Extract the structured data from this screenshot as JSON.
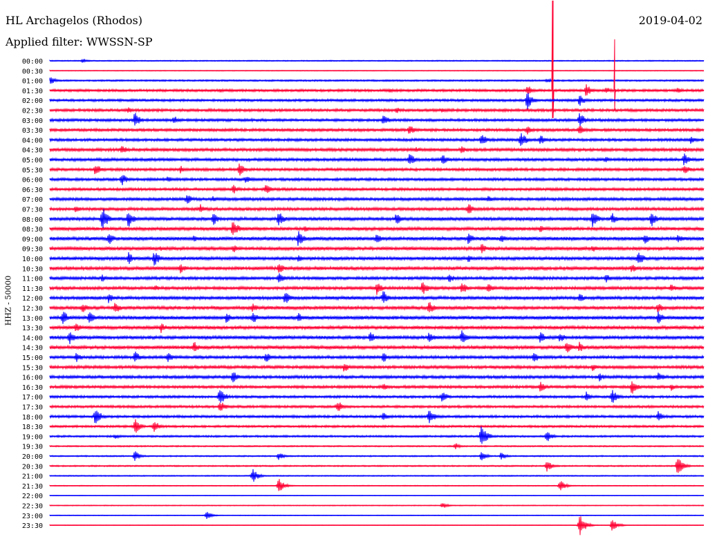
{
  "header": {
    "station": "HL Archagelos (Rhodos)",
    "filter": "Applied filter: WWSSN-SP",
    "date": "2019-04-02"
  },
  "chart_data": {
    "type": "line",
    "title": "HL Archagelos (Rhodos)",
    "subtitle": "Applied filter: WWSSN-SP",
    "ylabel": "HHZ - 50000",
    "xlabel": "",
    "trace_colors": [
      "#0000ff",
      "#ff0033"
    ],
    "categories": [
      "00:00",
      "00:30",
      "01:00",
      "01:30",
      "02:00",
      "02:30",
      "03:00",
      "03:30",
      "04:00",
      "04:30",
      "05:00",
      "05:30",
      "06:00",
      "06:30",
      "07:00",
      "07:30",
      "08:00",
      "08:30",
      "09:00",
      "09:30",
      "10:00",
      "10:30",
      "11:00",
      "11:30",
      "12:00",
      "12:30",
      "13:00",
      "13:30",
      "14:00",
      "14:30",
      "15:00",
      "15:30",
      "16:00",
      "16:30",
      "17:00",
      "17:30",
      "18:00",
      "18:30",
      "19:00",
      "19:30",
      "20:00",
      "20:30",
      "21:00",
      "21:30",
      "22:00",
      "22:30",
      "23:00",
      "23:30"
    ],
    "noise": [
      0.8,
      0.5,
      1.2,
      1.8,
      1.8,
      2.0,
      2.0,
      2.0,
      2.0,
      2.2,
      2.2,
      2.0,
      2.0,
      2.0,
      2.2,
      2.2,
      2.4,
      2.4,
      2.6,
      2.4,
      2.4,
      2.4,
      2.2,
      2.2,
      2.4,
      2.4,
      2.6,
      2.4,
      2.4,
      2.4,
      2.2,
      2.2,
      2.2,
      2.0,
      1.8,
      1.8,
      1.8,
      1.6,
      1.4,
      1.0,
      1.0,
      1.0,
      0.8,
      0.6,
      0.4,
      0.6,
      0.5,
      0.4
    ],
    "events": [
      {
        "row": 0,
        "t": 0.05,
        "a": 4
      },
      {
        "row": 2,
        "t": 0.0,
        "a": 7
      },
      {
        "row": 2,
        "t": 0.76,
        "a": 4
      },
      {
        "row": 3,
        "t": 0.26,
        "a": 4
      },
      {
        "row": 3,
        "t": 0.52,
        "a": 4
      },
      {
        "row": 3,
        "t": 0.73,
        "a": 9
      },
      {
        "row": 3,
        "t": 0.82,
        "a": 10
      },
      {
        "row": 3,
        "t": 0.85,
        "a": 6
      },
      {
        "row": 3,
        "t": 0.96,
        "a": 5
      },
      {
        "row": 4,
        "t": 0.73,
        "a": 14
      },
      {
        "row": 4,
        "t": 0.81,
        "a": 9
      },
      {
        "row": 5,
        "t": 0.12,
        "a": 5
      },
      {
        "row": 5,
        "t": 0.53,
        "a": 5
      },
      {
        "row": 5,
        "t": 0.6,
        "a": 4
      },
      {
        "row": 6,
        "t": 0.13,
        "a": 12
      },
      {
        "row": 6,
        "t": 0.19,
        "a": 7
      },
      {
        "row": 6,
        "t": 0.51,
        "a": 9
      },
      {
        "row": 6,
        "t": 0.81,
        "a": 12
      },
      {
        "row": 7,
        "t": 0.55,
        "a": 8
      },
      {
        "row": 7,
        "t": 0.73,
        "a": 8
      },
      {
        "row": 7,
        "t": 0.81,
        "a": 8
      },
      {
        "row": 8,
        "t": 0.66,
        "a": 10
      },
      {
        "row": 8,
        "t": 0.72,
        "a": 13
      },
      {
        "row": 8,
        "t": 0.75,
        "a": 8
      },
      {
        "row": 8,
        "t": 0.98,
        "a": 6
      },
      {
        "row": 9,
        "t": 0.11,
        "a": 8
      },
      {
        "row": 9,
        "t": 0.56,
        "a": 5
      },
      {
        "row": 9,
        "t": 0.63,
        "a": 7
      },
      {
        "row": 9,
        "t": 0.97,
        "a": 4
      },
      {
        "row": 10,
        "t": 0.55,
        "a": 10
      },
      {
        "row": 10,
        "t": 0.6,
        "a": 9
      },
      {
        "row": 10,
        "t": 0.85,
        "a": 5
      },
      {
        "row": 10,
        "t": 0.97,
        "a": 10
      },
      {
        "row": 11,
        "t": 0.07,
        "a": 10
      },
      {
        "row": 11,
        "t": 0.2,
        "a": 6
      },
      {
        "row": 11,
        "t": 0.29,
        "a": 10
      },
      {
        "row": 11,
        "t": 0.97,
        "a": 8
      },
      {
        "row": 12,
        "t": 0.11,
        "a": 10
      },
      {
        "row": 12,
        "t": 0.18,
        "a": 5
      },
      {
        "row": 12,
        "t": 0.3,
        "a": 6
      },
      {
        "row": 13,
        "t": 0.28,
        "a": 8
      },
      {
        "row": 13,
        "t": 0.33,
        "a": 8
      },
      {
        "row": 14,
        "t": 0.21,
        "a": 8
      },
      {
        "row": 14,
        "t": 0.25,
        "a": 5
      },
      {
        "row": 14,
        "t": 0.67,
        "a": 6
      },
      {
        "row": 15,
        "t": 0.04,
        "a": 6
      },
      {
        "row": 15,
        "t": 0.23,
        "a": 8
      },
      {
        "row": 15,
        "t": 0.64,
        "a": 9
      },
      {
        "row": 16,
        "t": 0.08,
        "a": 20
      },
      {
        "row": 16,
        "t": 0.12,
        "a": 14
      },
      {
        "row": 16,
        "t": 0.25,
        "a": 10
      },
      {
        "row": 16,
        "t": 0.35,
        "a": 12
      },
      {
        "row": 16,
        "t": 0.53,
        "a": 10
      },
      {
        "row": 16,
        "t": 0.83,
        "a": 14
      },
      {
        "row": 16,
        "t": 0.86,
        "a": 9
      },
      {
        "row": 16,
        "t": 0.92,
        "a": 12
      },
      {
        "row": 17,
        "t": 0.28,
        "a": 14
      },
      {
        "row": 17,
        "t": 0.39,
        "a": 6
      },
      {
        "row": 17,
        "t": 0.75,
        "a": 6
      },
      {
        "row": 18,
        "t": 0.09,
        "a": 10
      },
      {
        "row": 18,
        "t": 0.22,
        "a": 6
      },
      {
        "row": 18,
        "t": 0.38,
        "a": 12
      },
      {
        "row": 18,
        "t": 0.5,
        "a": 8
      },
      {
        "row": 18,
        "t": 0.64,
        "a": 10
      },
      {
        "row": 18,
        "t": 0.69,
        "a": 7
      },
      {
        "row": 18,
        "t": 0.91,
        "a": 9
      },
      {
        "row": 18,
        "t": 0.96,
        "a": 8
      },
      {
        "row": 19,
        "t": 0.17,
        "a": 4
      },
      {
        "row": 19,
        "t": 0.28,
        "a": 7
      },
      {
        "row": 19,
        "t": 0.66,
        "a": 8
      },
      {
        "row": 19,
        "t": 0.83,
        "a": 6
      },
      {
        "row": 20,
        "t": 0.12,
        "a": 10
      },
      {
        "row": 20,
        "t": 0.16,
        "a": 12
      },
      {
        "row": 20,
        "t": 0.38,
        "a": 6
      },
      {
        "row": 20,
        "t": 0.64,
        "a": 7
      },
      {
        "row": 20,
        "t": 0.9,
        "a": 12
      },
      {
        "row": 21,
        "t": 0.2,
        "a": 8
      },
      {
        "row": 21,
        "t": 0.35,
        "a": 9
      },
      {
        "row": 21,
        "t": 0.89,
        "a": 7
      },
      {
        "row": 22,
        "t": 0.08,
        "a": 6
      },
      {
        "row": 22,
        "t": 0.35,
        "a": 10
      },
      {
        "row": 22,
        "t": 0.61,
        "a": 8
      },
      {
        "row": 22,
        "t": 0.85,
        "a": 8
      },
      {
        "row": 23,
        "t": 0.16,
        "a": 6
      },
      {
        "row": 23,
        "t": 0.5,
        "a": 10
      },
      {
        "row": 23,
        "t": 0.57,
        "a": 12
      },
      {
        "row": 23,
        "t": 0.63,
        "a": 10
      },
      {
        "row": 23,
        "t": 0.67,
        "a": 8
      },
      {
        "row": 23,
        "t": 0.95,
        "a": 7
      },
      {
        "row": 24,
        "t": 0.09,
        "a": 8
      },
      {
        "row": 24,
        "t": 0.36,
        "a": 11
      },
      {
        "row": 24,
        "t": 0.51,
        "a": 12
      },
      {
        "row": 24,
        "t": 0.81,
        "a": 7
      },
      {
        "row": 25,
        "t": 0.05,
        "a": 8
      },
      {
        "row": 25,
        "t": 0.1,
        "a": 10
      },
      {
        "row": 25,
        "t": 0.31,
        "a": 8
      },
      {
        "row": 25,
        "t": 0.58,
        "a": 10
      },
      {
        "row": 25,
        "t": 0.93,
        "a": 8
      },
      {
        "row": 26,
        "t": 0.02,
        "a": 12
      },
      {
        "row": 26,
        "t": 0.06,
        "a": 10
      },
      {
        "row": 26,
        "t": 0.27,
        "a": 8
      },
      {
        "row": 26,
        "t": 0.31,
        "a": 10
      },
      {
        "row": 26,
        "t": 0.38,
        "a": 8
      },
      {
        "row": 26,
        "t": 0.93,
        "a": 10
      },
      {
        "row": 27,
        "t": 0.04,
        "a": 8
      },
      {
        "row": 27,
        "t": 0.17,
        "a": 8
      },
      {
        "row": 28,
        "t": 0.03,
        "a": 11
      },
      {
        "row": 28,
        "t": 0.49,
        "a": 9
      },
      {
        "row": 28,
        "t": 0.58,
        "a": 10
      },
      {
        "row": 28,
        "t": 0.63,
        "a": 11
      },
      {
        "row": 28,
        "t": 0.75,
        "a": 9
      },
      {
        "row": 28,
        "t": 0.78,
        "a": 8
      },
      {
        "row": 29,
        "t": 0.22,
        "a": 10
      },
      {
        "row": 29,
        "t": 0.79,
        "a": 11
      },
      {
        "row": 29,
        "t": 0.81,
        "a": 9
      },
      {
        "row": 30,
        "t": 0.04,
        "a": 8
      },
      {
        "row": 30,
        "t": 0.13,
        "a": 10
      },
      {
        "row": 30,
        "t": 0.18,
        "a": 9
      },
      {
        "row": 30,
        "t": 0.33,
        "a": 9
      },
      {
        "row": 30,
        "t": 0.51,
        "a": 8
      },
      {
        "row": 30,
        "t": 0.74,
        "a": 9
      },
      {
        "row": 31,
        "t": 0.45,
        "a": 8
      },
      {
        "row": 31,
        "t": 0.83,
        "a": 6
      },
      {
        "row": 32,
        "t": 0.28,
        "a": 10
      },
      {
        "row": 32,
        "t": 0.84,
        "a": 7
      },
      {
        "row": 32,
        "t": 0.93,
        "a": 9
      },
      {
        "row": 33,
        "t": 0.51,
        "a": 6
      },
      {
        "row": 33,
        "t": 0.75,
        "a": 9
      },
      {
        "row": 33,
        "t": 0.89,
        "a": 12
      },
      {
        "row": 33,
        "t": 0.95,
        "a": 6
      },
      {
        "row": 34,
        "t": 0.26,
        "a": 14
      },
      {
        "row": 34,
        "t": 0.6,
        "a": 9
      },
      {
        "row": 34,
        "t": 0.82,
        "a": 8
      },
      {
        "row": 34,
        "t": 0.86,
        "a": 11
      },
      {
        "row": 35,
        "t": 0.26,
        "a": 10
      },
      {
        "row": 35,
        "t": 0.44,
        "a": 10
      },
      {
        "row": 36,
        "t": 0.07,
        "a": 14
      },
      {
        "row": 36,
        "t": 0.51,
        "a": 7
      },
      {
        "row": 36,
        "t": 0.58,
        "a": 12
      },
      {
        "row": 36,
        "t": 0.93,
        "a": 8
      },
      {
        "row": 37,
        "t": 0.13,
        "a": 12
      },
      {
        "row": 37,
        "t": 0.16,
        "a": 10
      },
      {
        "row": 38,
        "t": 0.1,
        "a": 4
      },
      {
        "row": 38,
        "t": 0.66,
        "a": 18
      },
      {
        "row": 38,
        "t": 0.76,
        "a": 9
      },
      {
        "row": 39,
        "t": 0.62,
        "a": 5
      },
      {
        "row": 40,
        "t": 0.13,
        "a": 8
      },
      {
        "row": 40,
        "t": 0.35,
        "a": 6
      },
      {
        "row": 40,
        "t": 0.66,
        "a": 8
      },
      {
        "row": 40,
        "t": 0.69,
        "a": 6
      },
      {
        "row": 41,
        "t": 0.76,
        "a": 9
      },
      {
        "row": 41,
        "t": 0.96,
        "a": 14
      },
      {
        "row": 42,
        "t": 0.31,
        "a": 11
      },
      {
        "row": 43,
        "t": 0.35,
        "a": 12
      },
      {
        "row": 43,
        "t": 0.78,
        "a": 9
      },
      {
        "row": 45,
        "t": 0.6,
        "a": 5
      },
      {
        "row": 46,
        "t": 0.24,
        "a": 6
      },
      {
        "row": 47,
        "t": 0.81,
        "a": 18
      },
      {
        "row": 47,
        "t": 0.86,
        "a": 10
      }
    ],
    "spikes": [
      {
        "row": 3,
        "t": 0.769,
        "up": 130,
        "down": 40
      },
      {
        "row": 3,
        "t": 0.864,
        "up": 74,
        "down": 28
      }
    ]
  }
}
